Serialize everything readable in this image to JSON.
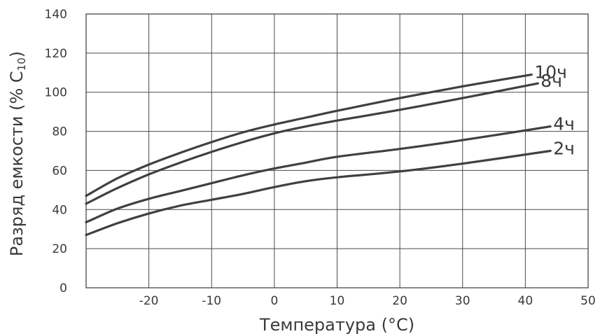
{
  "chart_data": {
    "type": "line",
    "title": "",
    "xlabel": "Температура (°C)",
    "ylabel": "Разряд емкости (% C",
    "ylabel_sub": "10",
    "ylabel_end": ")",
    "xlim": [
      -30,
      50
    ],
    "ylim": [
      0,
      140
    ],
    "xticks": [
      -20,
      -10,
      0,
      10,
      20,
      30,
      40,
      50
    ],
    "yticks": [
      0,
      20,
      40,
      60,
      80,
      100,
      120,
      140
    ],
    "grid": true,
    "legend": "inline-right",
    "line_color": "#404040",
    "series": [
      {
        "name": "10ч",
        "x": [
          -30,
          -25,
          -20,
          -15,
          -10,
          -5,
          0,
          5,
          10,
          20,
          30,
          41
        ],
        "y": [
          47,
          56,
          63,
          69,
          74.5,
          79.5,
          83.5,
          87,
          90.5,
          97,
          103,
          109
        ]
      },
      {
        "name": "8ч",
        "x": [
          -30,
          -25,
          -20,
          -15,
          -10,
          -5,
          0,
          5,
          10,
          20,
          30,
          42
        ],
        "y": [
          43,
          51,
          58,
          64,
          69.5,
          74.5,
          79,
          82.5,
          85.5,
          91,
          97,
          104.5
        ]
      },
      {
        "name": "4ч",
        "x": [
          -30,
          -25,
          -20,
          -15,
          -10,
          -5,
          0,
          5,
          10,
          20,
          30,
          44
        ],
        "y": [
          33.5,
          40.5,
          45.5,
          49.5,
          53.5,
          57.5,
          61,
          64,
          67,
          71,
          75.5,
          82.5
        ]
      },
      {
        "name": "2ч",
        "x": [
          -30,
          -25,
          -20,
          -15,
          -10,
          -5,
          0,
          5,
          10,
          20,
          30,
          44
        ],
        "y": [
          27,
          33,
          38,
          42,
          45,
          48,
          51.5,
          54.5,
          56.5,
          59.5,
          63.5,
          70
        ]
      }
    ]
  }
}
